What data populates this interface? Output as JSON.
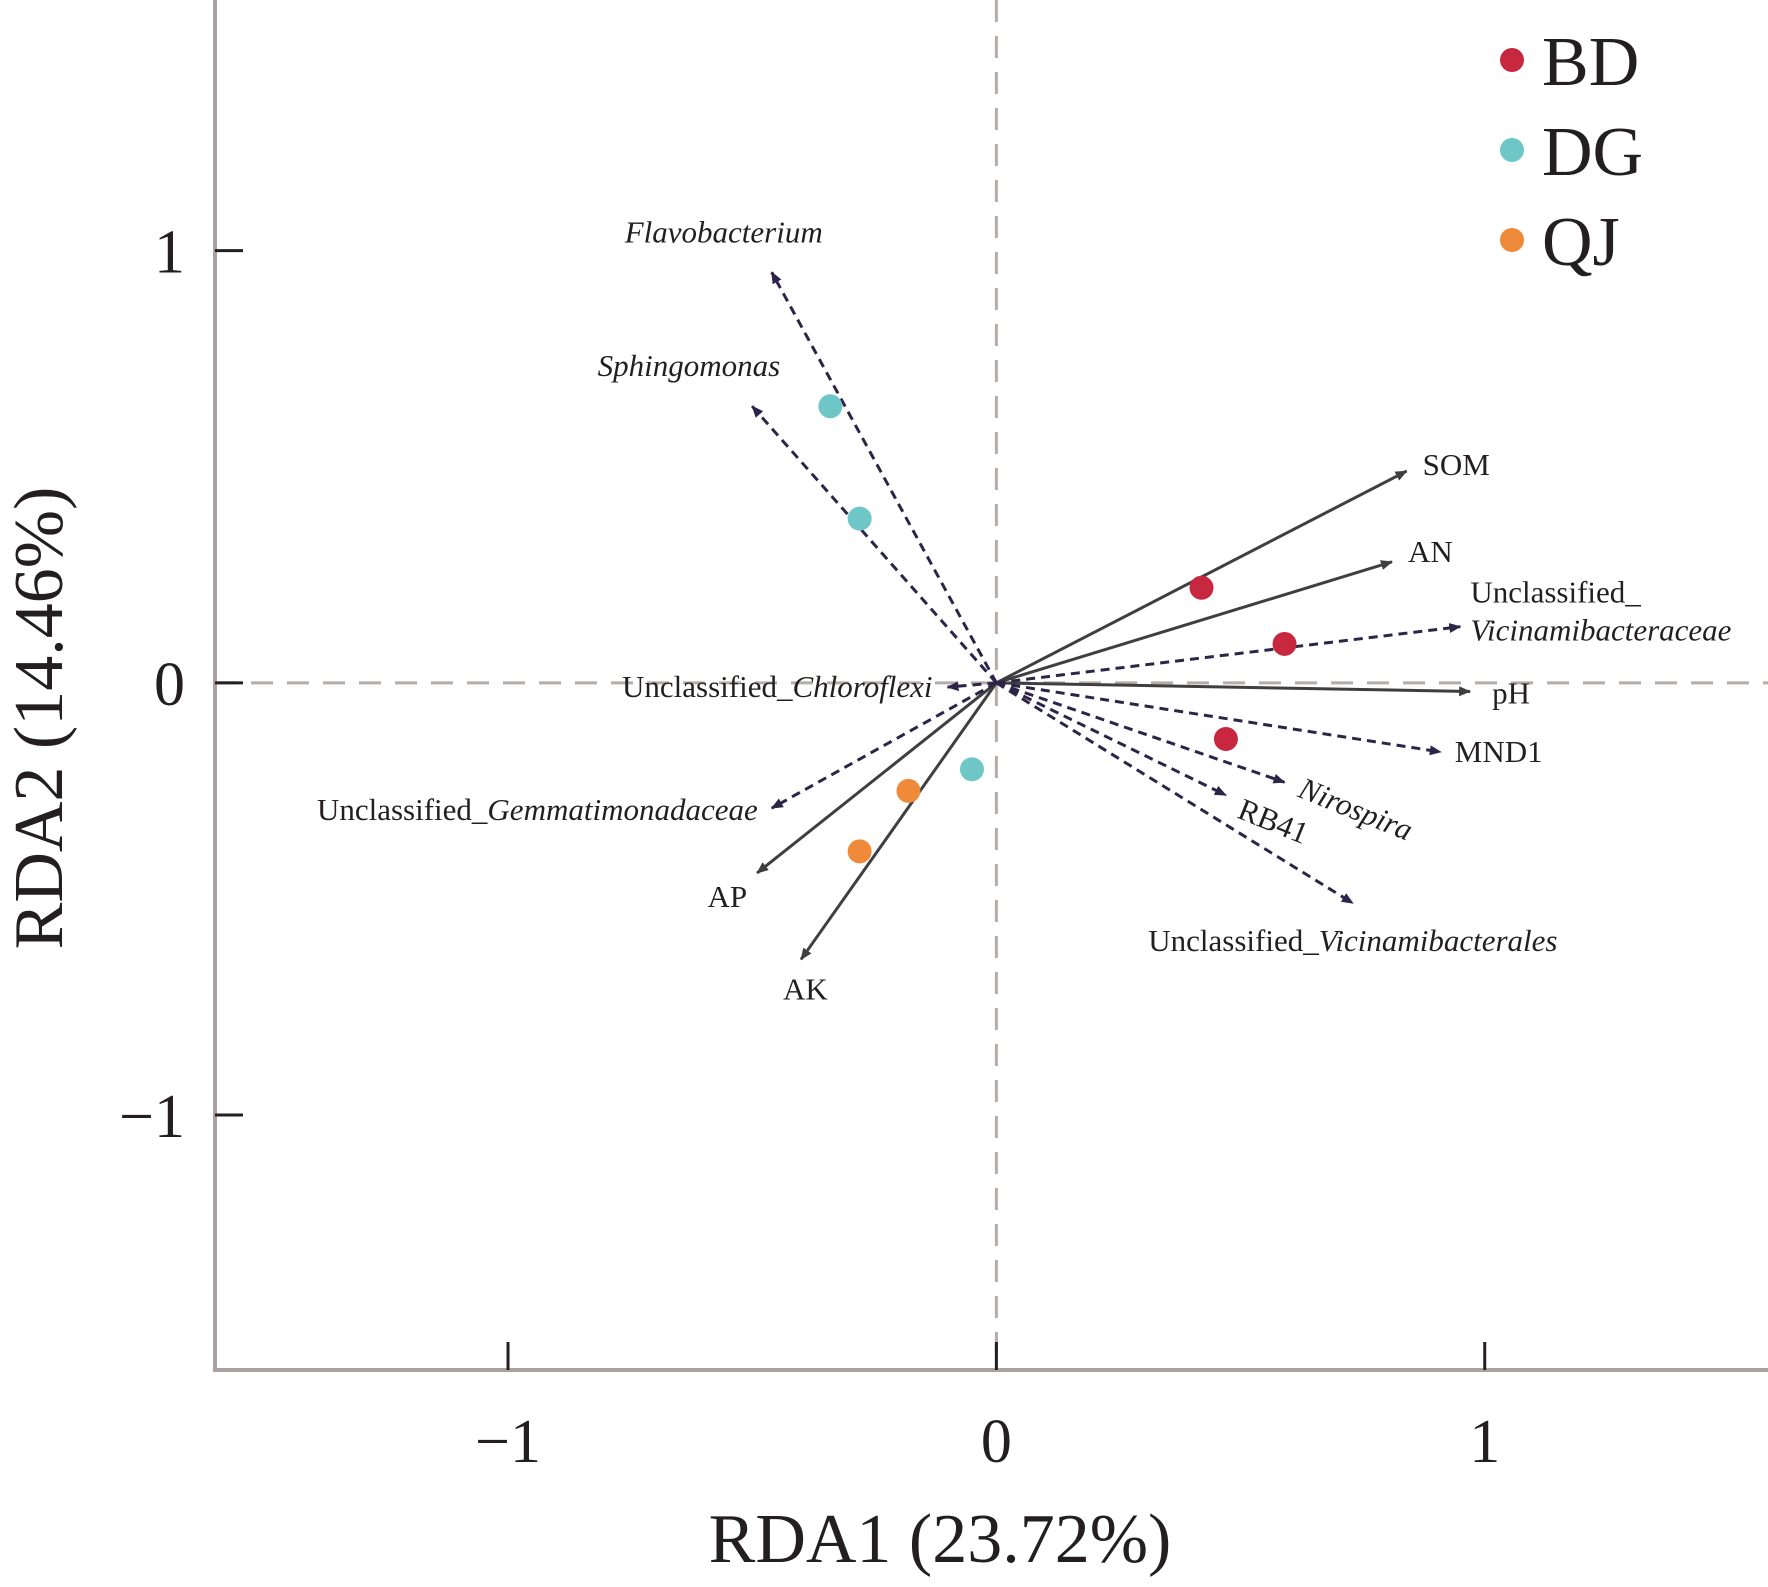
{
  "chart_data": {
    "type": "scatter",
    "subtype": "rda-biplot",
    "xlabel": "RDA1 (23.72%)",
    "ylabel": "RDA2 (14.46%)",
    "xlim": [
      -1.6,
      1.58
    ],
    "ylim": [
      -1.59,
      1.58
    ],
    "x_ticks": [
      {
        "value": -1,
        "label": "−1"
      },
      {
        "value": 0,
        "label": "0"
      },
      {
        "value": 1,
        "label": "1"
      }
    ],
    "y_ticks": [
      {
        "value": 1,
        "label": "1"
      },
      {
        "value": 0,
        "label": "0"
      },
      {
        "value": -1,
        "label": "−1"
      }
    ],
    "reference_lines": {
      "x": 0,
      "y": 0,
      "style": "dashed",
      "color": "#b4aca9"
    },
    "legend": {
      "placement": "top-right",
      "entries": [
        {
          "label": "BD",
          "color": "#c8283f"
        },
        {
          "label": "DG",
          "color": "#6ec7c6"
        },
        {
          "label": "QJ",
          "color": "#ef8a3a"
        }
      ]
    },
    "sample_points": [
      {
        "group": "DG",
        "x": -0.34,
        "y": 0.64
      },
      {
        "group": "DG",
        "x": -0.28,
        "y": 0.38
      },
      {
        "group": "DG",
        "x": -0.05,
        "y": -0.2
      },
      {
        "group": "QJ",
        "x": -0.18,
        "y": -0.25
      },
      {
        "group": "QJ",
        "x": -0.28,
        "y": -0.39
      },
      {
        "group": "BD",
        "x": 0.42,
        "y": 0.22
      },
      {
        "group": "BD",
        "x": 0.59,
        "y": 0.09
      },
      {
        "group": "BD",
        "x": 0.47,
        "y": -0.13
      }
    ],
    "environment_vectors": [
      {
        "label": "SOM",
        "x": 0.84,
        "y": 0.49
      },
      {
        "label": "AN",
        "x": 0.81,
        "y": 0.28
      },
      {
        "label": "pH",
        "x": 0.97,
        "y": -0.02
      },
      {
        "label": "AP",
        "x": -0.49,
        "y": -0.44
      },
      {
        "label": "AK",
        "x": -0.4,
        "y": -0.64
      }
    ],
    "species_vectors": [
      {
        "parts": [
          {
            "text": "Flavobacterium",
            "italic": true
          }
        ],
        "x": -0.46,
        "y": 0.95
      },
      {
        "parts": [
          {
            "text": "Sphingomonas",
            "italic": true
          }
        ],
        "x": -0.5,
        "y": 0.64
      },
      {
        "parts": [
          {
            "text": "Unclassified_",
            "italic": false
          },
          {
            "text": "Vicinamibacteraceae",
            "italic": true
          }
        ],
        "x": 0.95,
        "y": 0.13
      },
      {
        "parts": [
          {
            "text": "Unclassified_",
            "italic": false
          },
          {
            "text": "Chloroflexi",
            "italic": true
          }
        ],
        "x": -0.1,
        "y": -0.01
      },
      {
        "parts": [
          {
            "text": "MND1",
            "italic": false
          }
        ],
        "x": 0.91,
        "y": -0.16
      },
      {
        "parts": [
          {
            "text": "Nirospira",
            "italic": true
          }
        ],
        "x": 0.59,
        "y": -0.23
      },
      {
        "parts": [
          {
            "text": "RB41",
            "italic": false
          }
        ],
        "x": 0.47,
        "y": -0.26
      },
      {
        "parts": [
          {
            "text": "Unclassified_",
            "italic": false
          },
          {
            "text": "Gemmatimonadaceae",
            "italic": true
          }
        ],
        "x": -0.46,
        "y": -0.29
      },
      {
        "parts": [
          {
            "text": "Unclassified_",
            "italic": false
          },
          {
            "text": "Vicinamibacterales",
            "italic": true
          }
        ],
        "x": 0.73,
        "y": -0.51
      }
    ],
    "grid": false,
    "colors": {
      "axis": "#a9a19e",
      "environment_arrow": "#3f3f3f",
      "species_arrow": "#2d2548"
    }
  }
}
